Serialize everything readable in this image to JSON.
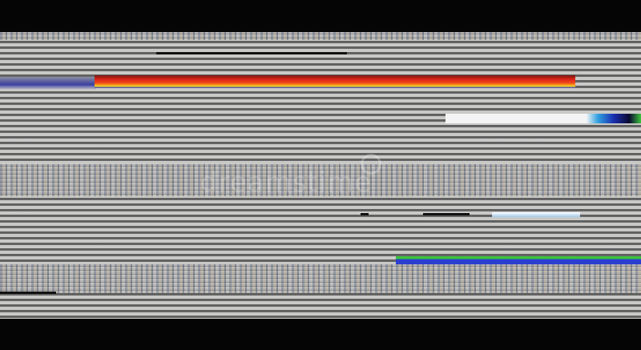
{
  "image": {
    "subject": "glitch",
    "colors": {
      "background": "#050505",
      "stripe_light": "#c9c9c7",
      "stripe_dark": "#5a5a5a",
      "glitch_red": "#e2261a",
      "glitch_yellow": "#f5d020",
      "glitch_blue": "#2a3fd0",
      "glitch_green": "#3cc23c"
    }
  },
  "watermark": {
    "text": "dreamstime"
  }
}
